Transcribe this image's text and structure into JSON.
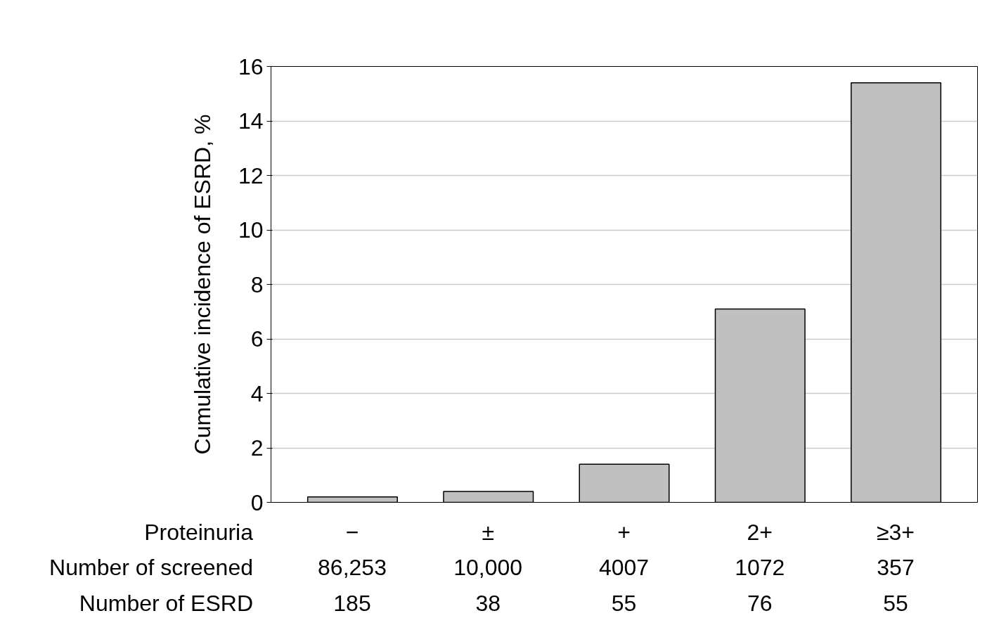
{
  "chart_data": {
    "type": "bar",
    "xlabel": "Proteinuria",
    "ylabel": "Cumulative incidence of ESRD, %",
    "categories": [
      "−",
      "±",
      "+",
      "2+",
      "≥3+"
    ],
    "values": [
      0.2,
      0.4,
      1.4,
      7.1,
      15.4
    ],
    "color": "#c0c0c0",
    "ylim": [
      0,
      16
    ],
    "yticks": [
      0,
      2,
      4,
      6,
      8,
      10,
      12,
      14,
      16
    ],
    "grid": "y",
    "legend": false,
    "annotations": [
      "Number of screened",
      "86,253",
      "10,000",
      "4007",
      "1072",
      "357",
      "Number of ESRD",
      "185",
      "38",
      "55",
      "76",
      "55"
    ]
  }
}
